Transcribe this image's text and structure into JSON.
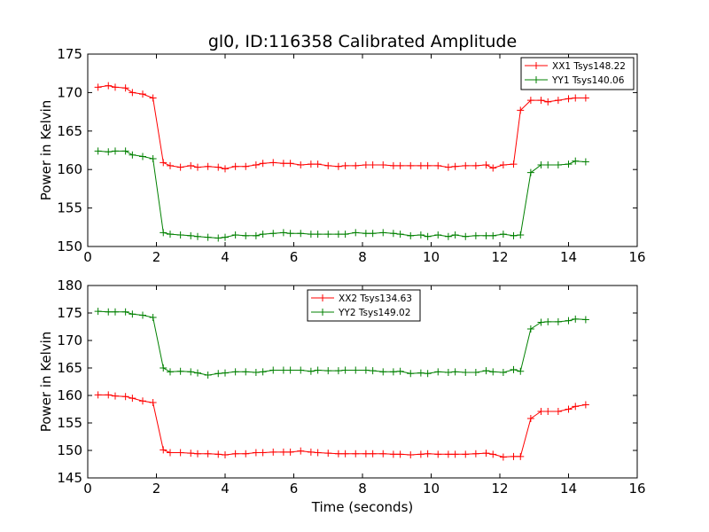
{
  "chart_data": [
    {
      "type": "line",
      "title": "gl0, ID:116358 Calibrated Amplitude",
      "xlabel": "",
      "ylabel": "Power in Kelvin",
      "xlim": [
        0,
        16
      ],
      "ylim": [
        150,
        175
      ],
      "xticks": [
        "0",
        "2",
        "4",
        "6",
        "8",
        "10",
        "12",
        "14",
        "16"
      ],
      "yticks": [
        "150",
        "155",
        "160",
        "165",
        "170",
        "175"
      ],
      "grid": false,
      "legend_position": "top-right",
      "x": [
        0.3,
        0.6,
        0.8,
        1.1,
        1.3,
        1.6,
        1.9,
        2.2,
        2.4,
        2.7,
        3.0,
        3.2,
        3.5,
        3.8,
        4.0,
        4.3,
        4.6,
        4.9,
        5.1,
        5.4,
        5.7,
        5.9,
        6.2,
        6.5,
        6.7,
        7.0,
        7.3,
        7.5,
        7.8,
        8.1,
        8.3,
        8.6,
        8.9,
        9.1,
        9.4,
        9.7,
        9.9,
        10.2,
        10.5,
        10.7,
        11.0,
        11.3,
        11.6,
        11.8,
        12.1,
        12.4,
        12.6,
        12.9,
        13.2,
        13.4,
        13.7,
        14.0,
        14.2,
        14.5
      ],
      "series": [
        {
          "name": "XX1 Tsys148.22",
          "color": "#ff0000",
          "values": [
            170.7,
            170.9,
            170.7,
            170.6,
            170.0,
            169.8,
            169.3,
            160.9,
            160.5,
            160.3,
            160.5,
            160.3,
            160.4,
            160.3,
            160.1,
            160.4,
            160.4,
            160.6,
            160.8,
            160.9,
            160.8,
            160.8,
            160.6,
            160.7,
            160.7,
            160.5,
            160.4,
            160.5,
            160.5,
            160.6,
            160.6,
            160.6,
            160.5,
            160.5,
            160.5,
            160.5,
            160.5,
            160.5,
            160.3,
            160.4,
            160.5,
            160.5,
            160.6,
            160.2,
            160.6,
            160.7,
            167.7,
            169.0,
            169.0,
            168.8,
            169.0,
            169.2,
            169.3,
            169.3
          ]
        },
        {
          "name": "YY1 Tsys140.06",
          "color": "#008000",
          "values": [
            162.4,
            162.3,
            162.4,
            162.4,
            161.9,
            161.7,
            161.4,
            151.8,
            151.6,
            151.5,
            151.4,
            151.3,
            151.2,
            151.1,
            151.2,
            151.5,
            151.4,
            151.4,
            151.6,
            151.7,
            151.8,
            151.7,
            151.7,
            151.6,
            151.6,
            151.6,
            151.6,
            151.6,
            151.8,
            151.7,
            151.7,
            151.8,
            151.7,
            151.6,
            151.4,
            151.5,
            151.3,
            151.5,
            151.3,
            151.5,
            151.3,
            151.4,
            151.4,
            151.4,
            151.6,
            151.4,
            151.5,
            159.6,
            160.6,
            160.6,
            160.6,
            160.7,
            161.1,
            161.0
          ]
        }
      ]
    },
    {
      "type": "line",
      "title": "",
      "xlabel": "Time (seconds)",
      "ylabel": "Power in Kelvin",
      "xlim": [
        0,
        16
      ],
      "ylim": [
        145,
        180
      ],
      "xticks": [
        "0",
        "2",
        "4",
        "6",
        "8",
        "10",
        "12",
        "14",
        "16"
      ],
      "yticks": [
        "145",
        "150",
        "155",
        "160",
        "165",
        "170",
        "175",
        "180"
      ],
      "grid": false,
      "legend_position": "top-center",
      "x": [
        0.3,
        0.6,
        0.8,
        1.1,
        1.3,
        1.6,
        1.9,
        2.2,
        2.4,
        2.7,
        3.0,
        3.2,
        3.5,
        3.8,
        4.0,
        4.3,
        4.6,
        4.9,
        5.1,
        5.4,
        5.7,
        5.9,
        6.2,
        6.5,
        6.7,
        7.0,
        7.3,
        7.5,
        7.8,
        8.1,
        8.3,
        8.6,
        8.9,
        9.1,
        9.4,
        9.7,
        9.9,
        10.2,
        10.5,
        10.7,
        11.0,
        11.3,
        11.6,
        11.8,
        12.1,
        12.4,
        12.6,
        12.9,
        13.2,
        13.4,
        13.7,
        14.0,
        14.2,
        14.5
      ],
      "series": [
        {
          "name": "XX2 Tsys134.63",
          "color": "#ff0000",
          "values": [
            160.1,
            160.1,
            159.9,
            159.8,
            159.5,
            159.0,
            158.7,
            150.1,
            149.6,
            149.6,
            149.5,
            149.4,
            149.4,
            149.3,
            149.2,
            149.4,
            149.4,
            149.6,
            149.6,
            149.7,
            149.7,
            149.7,
            149.9,
            149.7,
            149.6,
            149.5,
            149.4,
            149.4,
            149.4,
            149.4,
            149.4,
            149.4,
            149.3,
            149.3,
            149.2,
            149.3,
            149.4,
            149.3,
            149.3,
            149.3,
            149.3,
            149.4,
            149.5,
            149.3,
            148.8,
            148.9,
            148.9,
            155.8,
            157.1,
            157.1,
            157.1,
            157.5,
            158.0,
            158.3
          ]
        },
        {
          "name": "YY2 Tsys149.02",
          "color": "#008000",
          "values": [
            175.3,
            175.2,
            175.2,
            175.2,
            174.8,
            174.6,
            174.2,
            165.0,
            164.3,
            164.4,
            164.3,
            164.1,
            163.7,
            164.0,
            164.1,
            164.3,
            164.3,
            164.2,
            164.3,
            164.6,
            164.6,
            164.6,
            164.6,
            164.4,
            164.6,
            164.5,
            164.5,
            164.6,
            164.6,
            164.6,
            164.5,
            164.3,
            164.3,
            164.4,
            164.0,
            164.1,
            164.0,
            164.3,
            164.2,
            164.3,
            164.2,
            164.2,
            164.5,
            164.3,
            164.2,
            164.7,
            164.4,
            172.1,
            173.3,
            173.4,
            173.4,
            173.6,
            173.9,
            173.8
          ]
        }
      ]
    }
  ]
}
